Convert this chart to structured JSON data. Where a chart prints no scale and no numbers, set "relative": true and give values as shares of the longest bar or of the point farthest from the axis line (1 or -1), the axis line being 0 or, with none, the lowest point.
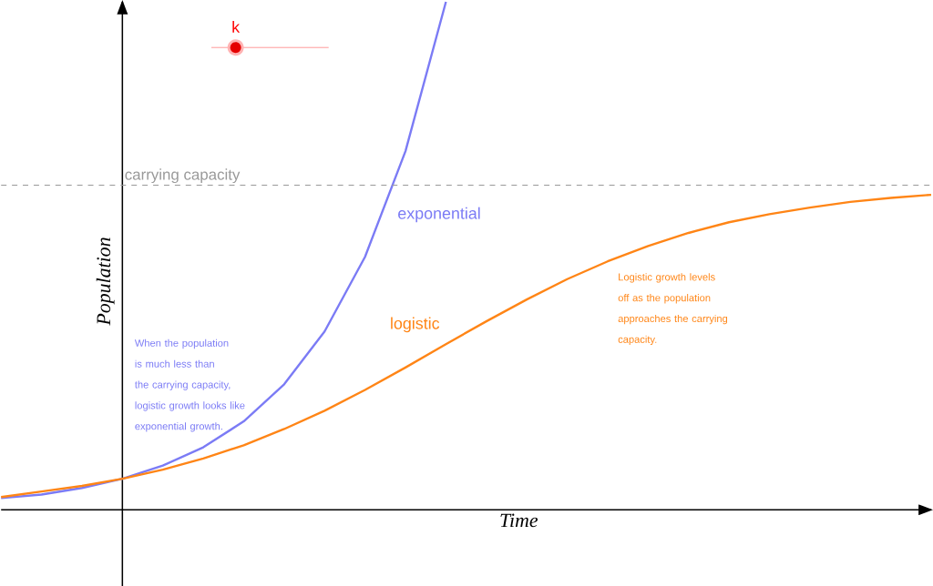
{
  "chart_data": {
    "type": "line",
    "xlabel": "Time",
    "ylabel": "Population",
    "relative": true,
    "marker": "none",
    "line_style": "solid",
    "categories": [
      null,
      null,
      null,
      null,
      null,
      null,
      null,
      null,
      null,
      null,
      null,
      null,
      null,
      null,
      null,
      null,
      null,
      null,
      null,
      null,
      null,
      null,
      null,
      null
    ],
    "series": [
      {
        "name": "exponential",
        "color": "#7b7bf5",
        "values": [
          0.023,
          0.03,
          0.043,
          0.061,
          0.087,
          0.123,
          0.174,
          0.247,
          0.351,
          0.498,
          0.706,
          1.0,
          null,
          null,
          null,
          null,
          null,
          null,
          null,
          null,
          null,
          null,
          null,
          null
        ]
      },
      {
        "name": "logistic",
        "color": "#ff8516",
        "values": [
          0.025,
          0.036,
          0.047,
          0.061,
          0.079,
          0.101,
          0.127,
          0.159,
          0.195,
          0.236,
          0.28,
          0.326,
          0.371,
          0.414,
          0.454,
          0.489,
          0.519,
          0.545,
          0.566,
          0.582,
          0.595,
          0.606,
          0.614,
          0.62
        ]
      }
    ],
    "ref_lines": [
      {
        "axis": "y",
        "value": 0.639,
        "label": "carrying capacity",
        "color": "#999999",
        "line_style": "dashed"
      }
    ],
    "annotations": [
      "When the population is much less than the carrying capacity, logistic growth looks like exponential growth.",
      "Logistic growth levels off as the population approaches the carrying capacity.",
      "k"
    ]
  }
}
